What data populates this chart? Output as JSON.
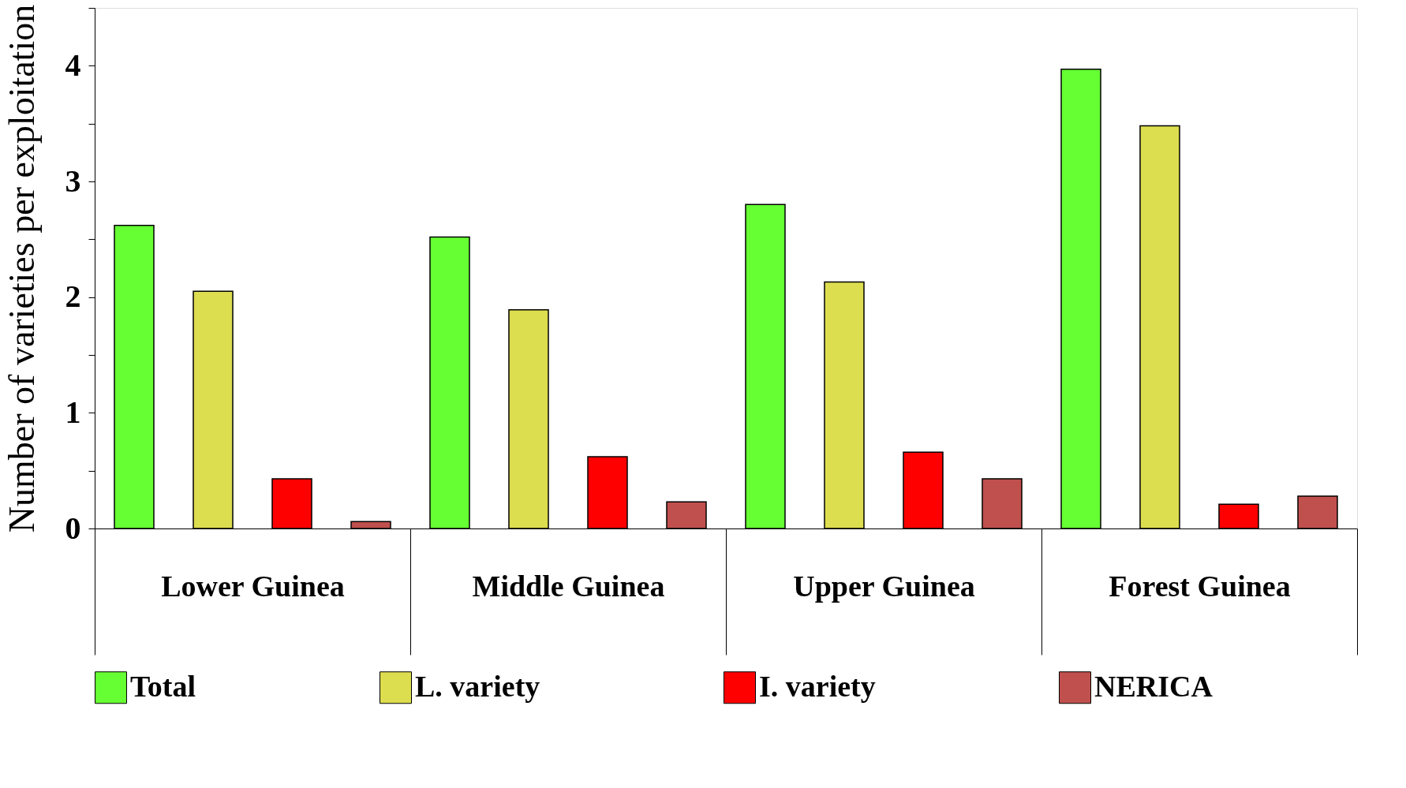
{
  "chart_data": {
    "type": "bar",
    "ylabel": "Number of varieties per exploitation",
    "categories": [
      "Lower Guinea",
      "Middle Guinea",
      "Upper Guinea",
      "Forest Guinea"
    ],
    "series": [
      {
        "name": "Total",
        "color": "#66ff33",
        "values": [
          2.62,
          2.52,
          2.8,
          3.97
        ]
      },
      {
        "name": "L. variety",
        "color": "#dddd50",
        "values": [
          2.05,
          1.89,
          2.13,
          3.48
        ]
      },
      {
        "name": "I. variety",
        "color": "#ff0000",
        "values": [
          0.43,
          0.62,
          0.66,
          0.21
        ]
      },
      {
        "name": "NERICA",
        "color": "#c0504d",
        "values": [
          0.06,
          0.23,
          0.43,
          0.28
        ]
      }
    ],
    "ylim": [
      0,
      4.5
    ],
    "yticks": [
      0,
      {
        "value": 0.5,
        "label": null
      },
      1,
      {
        "value": 1.5,
        "label": null
      },
      2,
      {
        "value": 2.5,
        "label": null
      },
      3,
      {
        "value": 3.5,
        "label": null
      },
      4,
      {
        "value": 4.5,
        "label": null
      }
    ],
    "grid": false,
    "legend": "bottom"
  }
}
